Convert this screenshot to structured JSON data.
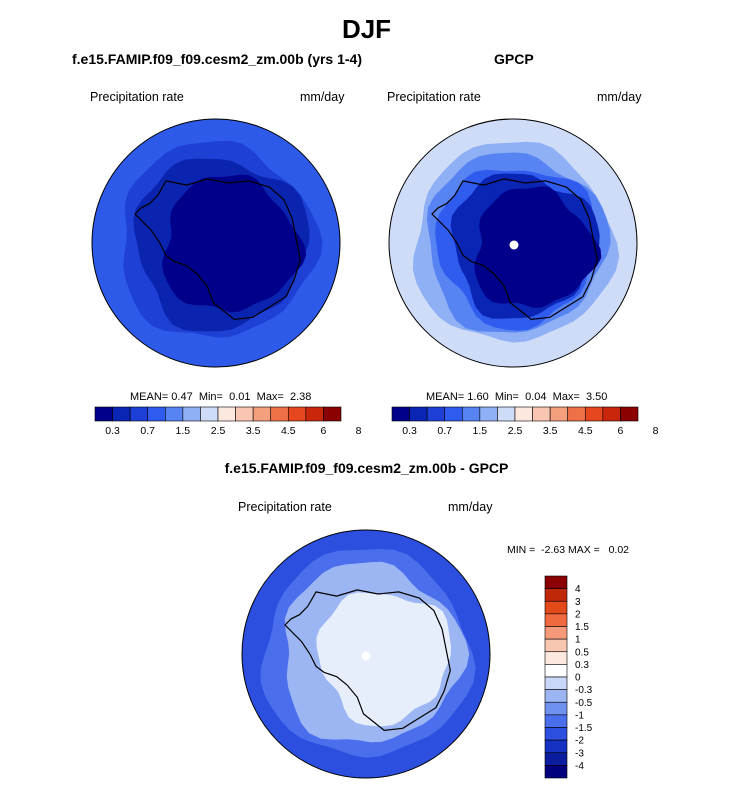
{
  "figure": {
    "title": "DJF"
  },
  "panels": {
    "model": {
      "title": "f.e15.FAMIP.f09_f09.cesm2_zm.00b (yrs 1-4)",
      "left_label": "Precipitation rate",
      "right_label": "mm/day",
      "stats": {
        "mean_label": "MEAN=",
        "mean": "0.47",
        "min_label": "Min=",
        "min": "0.01",
        "max_label": "Max=",
        "max": "2.38"
      }
    },
    "obs": {
      "title": "GPCP",
      "left_label": "Precipitation rate",
      "right_label": "mm/day",
      "stats": {
        "mean_label": "MEAN=",
        "mean": "1.60",
        "min_label": "Min=",
        "min": "0.04",
        "max_label": "Max=",
        "max": "3.50"
      }
    },
    "diff": {
      "title": "f.e15.FAMIP.f09_f09.cesm2_zm.00b - GPCP",
      "left_label": "Precipitation rate",
      "right_label": "mm/day",
      "minmax": {
        "min_label": "MIN =",
        "min": "-2.63",
        "max_label": "MAX =",
        "max": "0.02"
      }
    }
  },
  "colorbars": {
    "horizontal": {
      "colors": [
        "#00008b",
        "#0a24b4",
        "#1e3fd6",
        "#2f5bef",
        "#5784f2",
        "#8fb0f5",
        "#cfdcf8",
        "#fde8e0",
        "#f8c6b2",
        "#f49f7e",
        "#ee7046",
        "#e6471f",
        "#c9260c",
        "#8b0000"
      ],
      "tick_labels": [
        "0.3",
        "0.7",
        "1.5",
        "2.5",
        "3.5",
        "4.5",
        "6",
        "8"
      ]
    },
    "vertical": {
      "colors": [
        "#8b0000",
        "#c0280a",
        "#e34a19",
        "#f06a3f",
        "#f49a7a",
        "#f8c7b2",
        "#fde8df",
        "#ffffff",
        "#c9d8f8",
        "#9cb6f4",
        "#6f92f0",
        "#4a6eec",
        "#2c4fe0",
        "#1632c2",
        "#0a1d9e",
        "#00007f"
      ],
      "tick_labels": [
        "4",
        "3",
        "2",
        "1.5",
        "1",
        "0.5",
        "0.3",
        "0",
        "-0.3",
        "-0.5",
        "-1",
        "-1.5",
        "-2",
        "-3",
        "-4"
      ]
    }
  },
  "map_colors": {
    "model_outer": "#2d5ae8",
    "model_band": "#1e40d4",
    "model_inner": "#0b24b0",
    "model_core": "#00008b",
    "obs_outer": "#cfdcf8",
    "obs_band1": "#8fb0f5",
    "obs_band2": "#5784f2",
    "obs_band3": "#2f5bef",
    "obs_band4": "#0a24b4",
    "obs_core": "#00008b",
    "diff_outer": "#2c4fe0",
    "diff_band": "#4a6eec",
    "diff_mid": "#9cb6f4",
    "diff_core": "#e6eefc",
    "coast": "#000000"
  }
}
